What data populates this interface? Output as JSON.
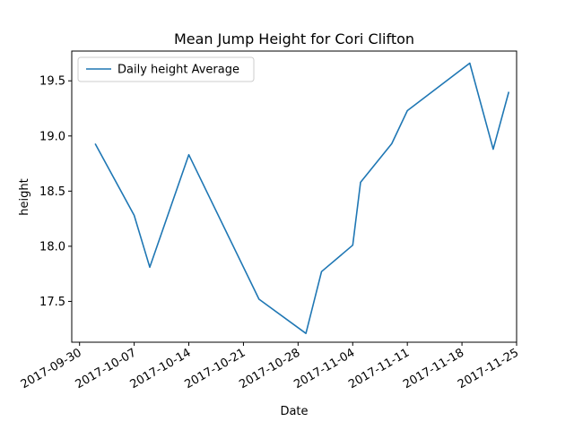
{
  "chart_data": {
    "type": "line",
    "title": "Mean Jump Height for Cori Clifton",
    "xlabel": "Date",
    "ylabel": "height",
    "grid": false,
    "legend_position": "top-left",
    "x_axis_type": "date",
    "xlim": [
      "2017-09-29",
      "2017-11-25"
    ],
    "ylim": [
      17.13,
      19.77
    ],
    "x_ticks": [
      "2017-09-30",
      "2017-10-07",
      "2017-10-14",
      "2017-10-21",
      "2017-10-28",
      "2017-11-04",
      "2017-11-11",
      "2017-11-18",
      "2017-11-25"
    ],
    "y_ticks": [
      17.5,
      18.0,
      18.5,
      19.0,
      19.5
    ],
    "y_tick_labels": [
      "17.5",
      "18.0",
      "18.5",
      "19.0",
      "19.5"
    ],
    "series": [
      {
        "name": "Daily height Average",
        "color": "#1f77b4",
        "x": [
          "2017-10-02",
          "2017-10-07",
          "2017-10-09",
          "2017-10-14",
          "2017-10-23",
          "2017-10-29",
          "2017-10-31",
          "2017-11-04",
          "2017-11-05",
          "2017-11-09",
          "2017-11-11",
          "2017-11-19",
          "2017-11-22",
          "2017-11-24"
        ],
        "y": [
          18.93,
          18.28,
          17.81,
          18.83,
          17.52,
          17.21,
          17.77,
          18.01,
          18.58,
          18.93,
          19.23,
          19.66,
          18.88,
          19.4
        ]
      }
    ]
  }
}
